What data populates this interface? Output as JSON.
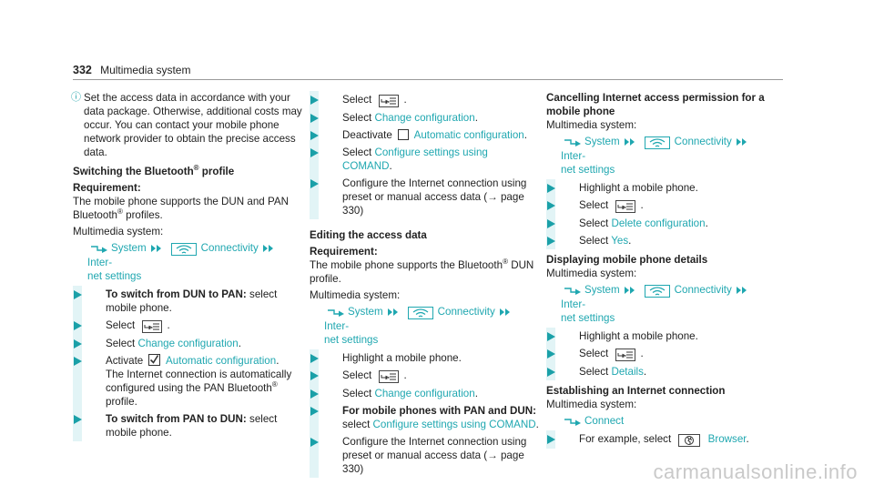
{
  "header": {
    "page_number": "332",
    "title": "Multimedia system"
  },
  "colors": {
    "link": "#1fa7b0",
    "bullet": "#1aa0a8",
    "bullet_bar": "#e2f4f6"
  },
  "columns": [
    {
      "blocks": [
        {
          "type": "note",
          "segs": [
            {
              "t": "Set the access data in accordance with your data package. Otherwise, additional costs may occur. You can contact your mobile phone network provider to obtain the precise access data."
            }
          ]
        },
        {
          "type": "heading",
          "segs": [
            {
              "t": "Switching the Bluetooth"
            },
            {
              "sup": "®"
            },
            {
              "t": " profile"
            }
          ]
        },
        {
          "type": "sub",
          "segs": [
            {
              "t": "Requirement:"
            }
          ]
        },
        {
          "type": "para",
          "segs": [
            {
              "t": "The mobile phone supports the DUN and PAN Bluetooth"
            },
            {
              "sup": "®"
            },
            {
              "t": " profiles."
            }
          ]
        },
        {
          "type": "para",
          "segs": [
            {
              "t": "Multimedia system:"
            }
          ]
        },
        {
          "type": "path",
          "segs": [
            {
              "icon": "path-arrow-icon"
            },
            {
              "l": "System"
            },
            {
              "icon": "double-chevron-icon"
            },
            {
              "icon": "wifi-icon"
            },
            {
              "l": "Connectivity"
            },
            {
              "icon": "double-chevron-icon"
            },
            {
              "l": "Inter-"
            },
            {
              "br": true
            },
            {
              "l": "net settings"
            }
          ]
        },
        {
          "type": "step",
          "segs": [
            {
              "b": "To switch from DUN to PAN:"
            },
            {
              "t": " select mobile phone."
            }
          ]
        },
        {
          "type": "step",
          "segs": [
            {
              "t": "Select "
            },
            {
              "icon": "menu-icon"
            },
            {
              "t": "."
            }
          ]
        },
        {
          "type": "step",
          "segs": [
            {
              "t": "Select "
            },
            {
              "l": "Change configuration"
            },
            {
              "t": "."
            }
          ]
        },
        {
          "type": "step",
          "segs": [
            {
              "t": "Activate "
            },
            {
              "icon": "checkbox-checked-icon"
            },
            {
              "l": " Automatic configuration"
            },
            {
              "t": "."
            },
            {
              "br": true
            },
            {
              "t": "The Internet connection is automatically configured using the PAN Bluetooth"
            },
            {
              "sup": "®"
            },
            {
              "t": " profile."
            }
          ]
        },
        {
          "type": "step",
          "segs": [
            {
              "b": "To switch from PAN to DUN:"
            },
            {
              "t": " select mobile phone."
            }
          ]
        }
      ]
    },
    {
      "blocks": [
        {
          "type": "step",
          "segs": [
            {
              "t": "Select "
            },
            {
              "icon": "menu-icon"
            },
            {
              "t": "."
            }
          ]
        },
        {
          "type": "step",
          "segs": [
            {
              "t": "Select "
            },
            {
              "l": "Change configuration"
            },
            {
              "t": "."
            }
          ]
        },
        {
          "type": "step",
          "segs": [
            {
              "t": "Deactivate "
            },
            {
              "icon": "checkbox-empty-icon"
            },
            {
              "l": " Automatic configuration"
            },
            {
              "t": "."
            }
          ]
        },
        {
          "type": "step",
          "segs": [
            {
              "t": "Select "
            },
            {
              "l": "Configure settings using COMAND"
            },
            {
              "t": "."
            }
          ]
        },
        {
          "type": "step",
          "segs": [
            {
              "t": "Configure the Internet connection using preset or manual access data (→ page 330)"
            }
          ]
        },
        {
          "type": "heading",
          "segs": [
            {
              "t": "Editing the access data"
            }
          ]
        },
        {
          "type": "sub",
          "segs": [
            {
              "t": "Requirement:"
            }
          ]
        },
        {
          "type": "para",
          "segs": [
            {
              "t": "The mobile phone supports the Bluetooth"
            },
            {
              "sup": "®"
            },
            {
              "t": " DUN profile."
            }
          ]
        },
        {
          "type": "para",
          "segs": [
            {
              "t": "Multimedia system:"
            }
          ]
        },
        {
          "type": "path",
          "segs": [
            {
              "icon": "path-arrow-icon"
            },
            {
              "l": "System"
            },
            {
              "icon": "double-chevron-icon"
            },
            {
              "icon": "wifi-icon"
            },
            {
              "l": "Connectivity"
            },
            {
              "icon": "double-chevron-icon"
            },
            {
              "l": "Inter-"
            },
            {
              "br": true
            },
            {
              "l": "net settings"
            }
          ]
        },
        {
          "type": "step",
          "segs": [
            {
              "t": "Highlight a mobile phone."
            }
          ]
        },
        {
          "type": "step",
          "segs": [
            {
              "t": "Select "
            },
            {
              "icon": "menu-icon"
            },
            {
              "t": "."
            }
          ]
        },
        {
          "type": "step",
          "segs": [
            {
              "t": "Select "
            },
            {
              "l": "Change configuration"
            },
            {
              "t": "."
            }
          ]
        },
        {
          "type": "step",
          "segs": [
            {
              "b": "For mobile phones with PAN and DUN:"
            },
            {
              "t": " select "
            },
            {
              "l": "Configure settings using COMAND"
            },
            {
              "t": "."
            }
          ]
        },
        {
          "type": "step",
          "segs": [
            {
              "t": "Configure the Internet connection using preset or manual access data (→ page 330)"
            }
          ]
        }
      ]
    },
    {
      "blocks": [
        {
          "type": "sub",
          "segs": [
            {
              "t": "Cancelling Internet access permission for a mobile phone"
            }
          ]
        },
        {
          "type": "para",
          "segs": [
            {
              "t": "Multimedia system:"
            }
          ]
        },
        {
          "type": "path",
          "segs": [
            {
              "icon": "path-arrow-icon"
            },
            {
              "l": "System"
            },
            {
              "icon": "double-chevron-icon"
            },
            {
              "icon": "wifi-icon"
            },
            {
              "l": "Connectivity"
            },
            {
              "icon": "double-chevron-icon"
            },
            {
              "l": "Inter-"
            },
            {
              "br": true
            },
            {
              "l": "net settings"
            }
          ]
        },
        {
          "type": "step",
          "segs": [
            {
              "t": "Highlight a mobile phone."
            }
          ]
        },
        {
          "type": "step",
          "segs": [
            {
              "t": "Select "
            },
            {
              "icon": "menu-icon"
            },
            {
              "t": "."
            }
          ]
        },
        {
          "type": "step",
          "segs": [
            {
              "t": "Select "
            },
            {
              "l": "Delete configuration"
            },
            {
              "t": "."
            }
          ]
        },
        {
          "type": "step",
          "segs": [
            {
              "t": "Select "
            },
            {
              "l": "Yes"
            },
            {
              "t": "."
            }
          ]
        },
        {
          "type": "sub",
          "segs": [
            {
              "t": "Displaying mobile phone details"
            }
          ]
        },
        {
          "type": "para",
          "segs": [
            {
              "t": "Multimedia system:"
            }
          ]
        },
        {
          "type": "path",
          "segs": [
            {
              "icon": "path-arrow-icon"
            },
            {
              "l": "System"
            },
            {
              "icon": "double-chevron-icon"
            },
            {
              "icon": "wifi-icon"
            },
            {
              "l": "Connectivity"
            },
            {
              "icon": "double-chevron-icon"
            },
            {
              "l": "Inter-"
            },
            {
              "br": true
            },
            {
              "l": "net settings"
            }
          ]
        },
        {
          "type": "step",
          "segs": [
            {
              "t": "Highlight a mobile phone."
            }
          ]
        },
        {
          "type": "step",
          "segs": [
            {
              "t": "Select "
            },
            {
              "icon": "menu-icon"
            },
            {
              "t": "."
            }
          ]
        },
        {
          "type": "step",
          "segs": [
            {
              "t": "Select "
            },
            {
              "l": "Details"
            },
            {
              "t": "."
            }
          ]
        },
        {
          "type": "sub",
          "segs": [
            {
              "t": "Establishing an Internet connection"
            }
          ]
        },
        {
          "type": "para",
          "segs": [
            {
              "t": "Multimedia system:"
            }
          ]
        },
        {
          "type": "path",
          "segs": [
            {
              "icon": "path-arrow-icon"
            },
            {
              "l": "Connect"
            }
          ]
        },
        {
          "type": "step",
          "segs": [
            {
              "t": "For example, select "
            },
            {
              "icon": "globe-icon"
            },
            {
              "l": " Browser"
            },
            {
              "t": "."
            }
          ]
        }
      ]
    }
  ],
  "watermark": "carmanualsonline.info"
}
